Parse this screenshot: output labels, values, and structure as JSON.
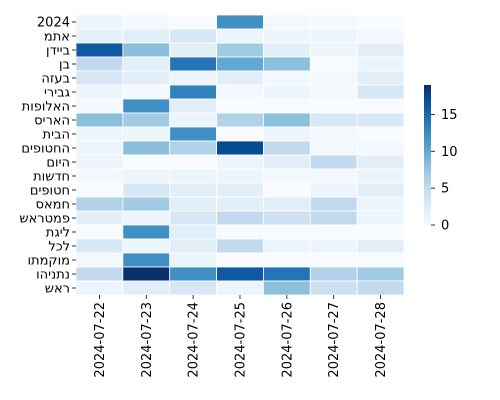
{
  "chart_data": {
    "type": "heatmap",
    "rows": [
      "2024",
      "אתמ",
      "ביידן",
      "בן",
      "בעזה",
      "גבירי",
      "האלופות",
      "האריס",
      "הבית",
      "החטופים",
      "היום",
      "חדשות",
      "חטופים",
      "חמאס",
      "פמטראש",
      "ליגת",
      "לכל",
      "מוקמתו",
      "נתניהו",
      "ראש"
    ],
    "columns": [
      "2024-07-22",
      "2024-07-23",
      "2024-07-24",
      "2024-07-25",
      "2024-07-26",
      "2024-07-27",
      "2024-07-28"
    ],
    "values": [
      [
        1,
        0.5,
        0,
        12,
        0.5,
        0.3,
        0
      ],
      [
        1.5,
        2,
        3,
        1,
        1,
        1,
        0.5
      ],
      [
        16,
        8,
        2,
        7,
        2,
        1,
        2
      ],
      [
        5,
        2,
        14,
        10,
        8,
        0,
        1
      ],
      [
        3,
        2,
        1,
        2,
        0.5,
        0.5,
        2
      ],
      [
        1,
        0.5,
        13,
        0.5,
        1,
        0.5,
        3
      ],
      [
        0.5,
        12,
        2,
        0,
        0,
        0,
        0
      ],
      [
        8,
        7,
        1,
        6,
        8,
        3,
        3
      ],
      [
        1,
        1,
        12,
        0,
        1,
        0.5,
        0
      ],
      [
        1,
        8,
        6,
        17,
        5,
        0.5,
        0.5
      ],
      [
        1,
        0,
        0,
        1,
        2,
        5,
        2
      ],
      [
        0.5,
        1,
        1,
        1,
        0.5,
        0.5,
        1
      ],
      [
        0,
        3,
        2,
        2,
        0,
        1,
        2
      ],
      [
        6,
        7,
        2,
        2,
        2,
        5,
        1
      ],
      [
        2,
        1,
        3,
        5,
        4,
        5,
        1
      ],
      [
        0,
        12,
        2,
        0,
        0,
        0,
        0
      ],
      [
        3,
        1,
        2,
        5,
        1,
        1,
        2
      ],
      [
        0.5,
        12,
        1,
        0,
        0,
        0,
        0
      ],
      [
        5,
        19,
        12,
        16,
        14,
        6,
        7
      ],
      [
        1,
        2,
        3,
        1,
        8,
        4,
        5
      ]
    ],
    "vmin": 0,
    "vmax": 19,
    "colorbar_ticks": [
      0,
      5,
      10,
      15
    ],
    "colormap": [
      "#f7fbff",
      "#deebf7",
      "#c6dbef",
      "#9ecae1",
      "#6baed6",
      "#4292c6",
      "#2171b5",
      "#08519c",
      "#08306b"
    ]
  }
}
